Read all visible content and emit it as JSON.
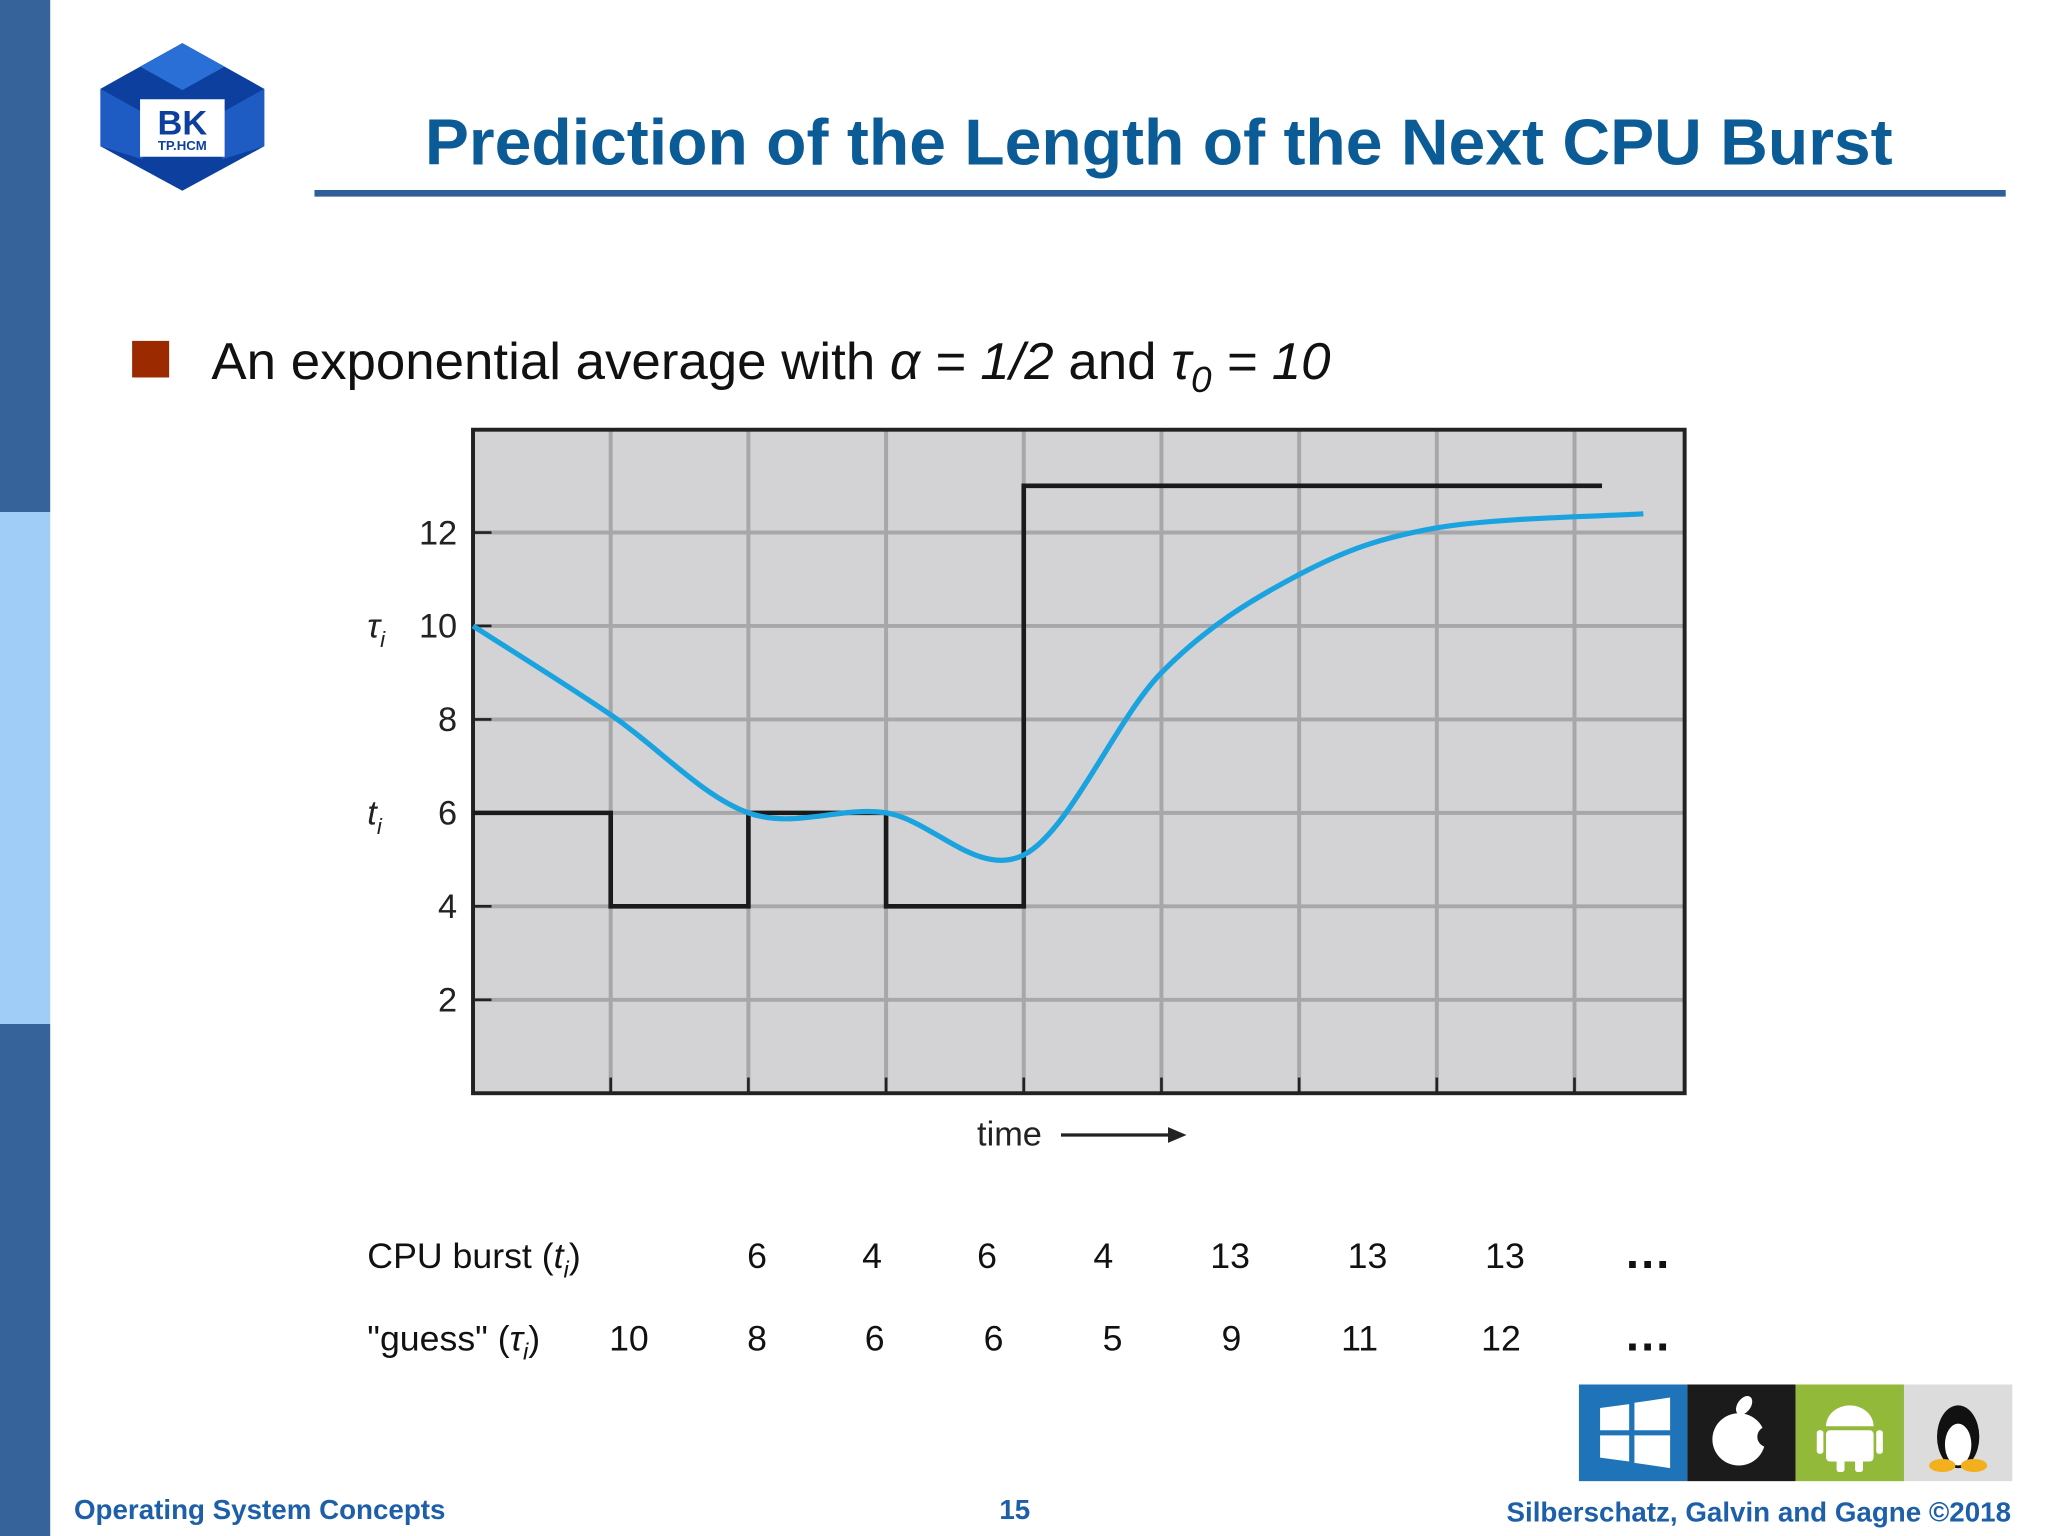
{
  "header": {
    "title": "Prediction of the Length of the Next CPU Burst",
    "logo": {
      "main": "BK",
      "sub": "TP.HCM"
    }
  },
  "bullet": {
    "parts": [
      "An exponential average with ",
      "α = 1/2",
      " and ",
      "τ",
      "0",
      " = 10"
    ]
  },
  "chart_data": {
    "type": "line",
    "xlabel": "time",
    "annotations": [
      {
        "symbol": "τ",
        "sub": "i",
        "y": 10
      },
      {
        "symbol": "t",
        "sub": "i",
        "y": 6
      }
    ],
    "xlim": [
      0,
      8.8
    ],
    "ylim": [
      0,
      14.2
    ],
    "xticks": [
      1,
      2,
      3,
      4,
      5,
      6,
      7,
      8
    ],
    "yticks": [
      2,
      4,
      6,
      8,
      10,
      12
    ],
    "grid": true,
    "series": [
      {
        "name": "CPU burst",
        "color": "#1a1a1a",
        "step": true,
        "x": [
          0,
          1,
          2,
          3,
          4,
          5,
          6,
          7,
          8.2
        ],
        "values": [
          6,
          4,
          6,
          4,
          13,
          13,
          13,
          13,
          13
        ]
      },
      {
        "name": "guess",
        "color": "#1ba3e0",
        "smooth": true,
        "x": [
          0,
          1,
          2,
          3,
          4,
          5,
          6,
          7,
          8.5
        ],
        "values": [
          10,
          8.1,
          6,
          6,
          5.1,
          9,
          11.1,
          12.1,
          12.4
        ]
      }
    ]
  },
  "table": {
    "rows": [
      {
        "label": [
          "CPU burst (",
          "t",
          "i",
          ")"
        ],
        "cells": [
          "6",
          "4",
          "6",
          "4",
          "13",
          "13",
          "13",
          "…"
        ]
      },
      {
        "label": [
          "\"guess\" (",
          "τ",
          "i",
          ")"
        ],
        "cells": [
          "10",
          "8",
          "6",
          "6",
          "5",
          "9",
          "11",
          "12",
          "…"
        ]
      }
    ]
  },
  "footer": {
    "left": "Operating System Concepts",
    "center": "15",
    "right": "Silberschatz, Galvin and Gagne ©2018"
  }
}
